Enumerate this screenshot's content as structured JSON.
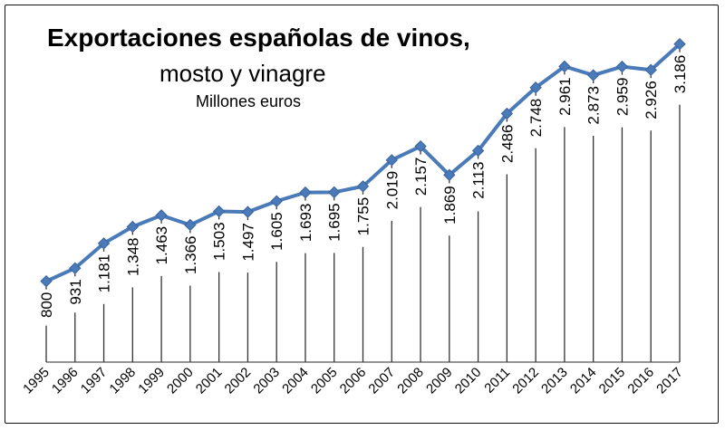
{
  "chart_data": {
    "type": "line",
    "title": "Exportaciones españolas de vinos,",
    "subtitle": "mosto y vinagre",
    "unit": "Millones euros",
    "xlabel": "",
    "ylabel": "",
    "grid": false,
    "ylim": [
      0,
      3300
    ],
    "x": [
      "1995",
      "1996",
      "1997",
      "1998",
      "1999",
      "2000",
      "2001",
      "2002",
      "2003",
      "2004",
      "2005",
      "2006",
      "2007",
      "2008",
      "2009",
      "2010",
      "2011",
      "2012",
      "2013",
      "2014",
      "2015",
      "2016",
      "2017"
    ],
    "values": [
      800,
      931,
      1181,
      1348,
      1463,
      1366,
      1503,
      1497,
      1605,
      1693,
      1695,
      1755,
      2019,
      2157,
      1869,
      2113,
      2486,
      2748,
      2961,
      2873,
      2959,
      2926,
      3186
    ],
    "value_labels": [
      "800",
      "931",
      "1.181",
      "1.348",
      "1.463",
      "1.366",
      "1.503",
      "1.497",
      "1.605",
      "1.693",
      "1.695",
      "1.755",
      "2.019",
      "2.157",
      "1.869",
      "2.113",
      "2.486",
      "2.748",
      "2.961",
      "2.873",
      "2.959",
      "2.926",
      "3.186"
    ],
    "line_color": "#4a7ab8",
    "marker": "diamond"
  }
}
